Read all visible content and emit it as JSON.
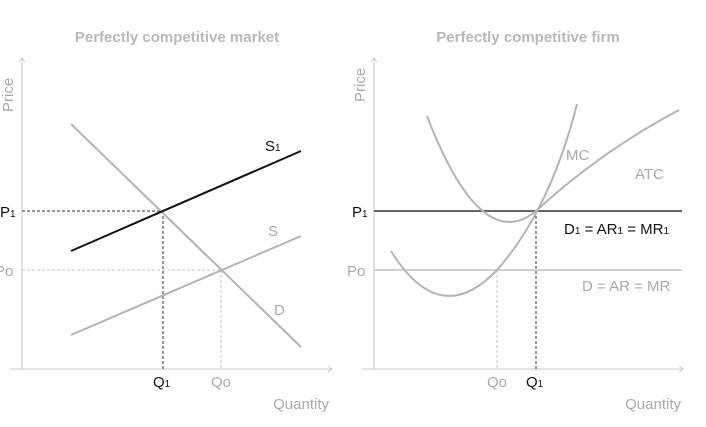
{
  "left_panel": {
    "title": "Perfectly competitive market",
    "y_axis_label": "Price",
    "x_axis_label": "Quantity",
    "p1_label": "P",
    "p1_sub": "1",
    "p0_label": "Po",
    "q1_label": "Q",
    "q1_sub": "1",
    "q0_label": "Qo",
    "s1_label": "S",
    "s1_sub": "1",
    "s_label": "S",
    "d_label": "D"
  },
  "right_panel": {
    "title": "Perfectly competitive firm",
    "y_axis_label": "Price",
    "x_axis_label": "Quantity",
    "p1_label": "P",
    "p1_sub": "1",
    "p0_label": "Po",
    "q1_label": "Q",
    "q1_sub": "1",
    "q0_label": "Qo",
    "mc_label": "MC",
    "atc_label": "ATC",
    "d1_label_parts": [
      "D",
      "1",
      " = AR",
      "1",
      " = MR",
      "1"
    ],
    "d_label": "D = AR = MR"
  },
  "colors": {
    "dark": "#111111",
    "grey": "#b4b4b4",
    "axis": "#c8c8c8"
  }
}
